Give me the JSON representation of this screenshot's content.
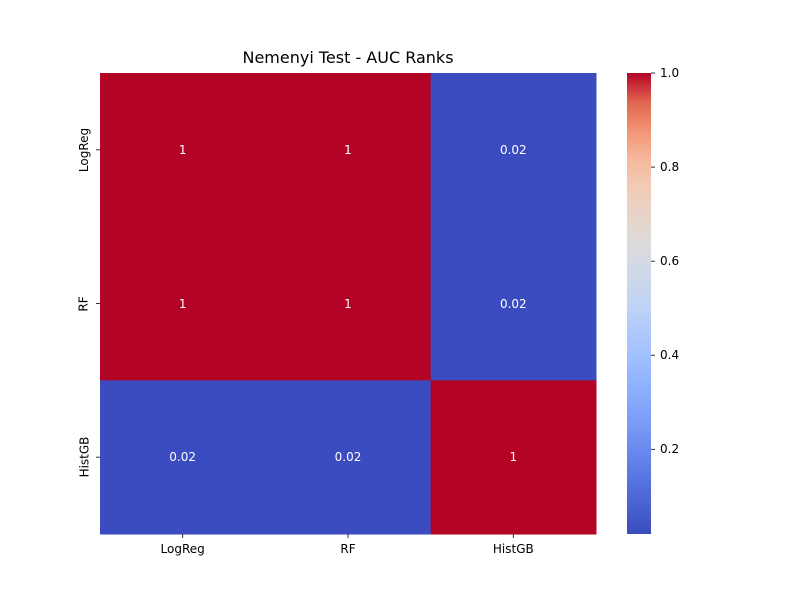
{
  "chart_data": {
    "type": "heatmap",
    "title": "Nemenyi Test - AUC Ranks",
    "xlabel": "",
    "ylabel": "",
    "x_categories": [
      "LogReg",
      "RF",
      "HistGB"
    ],
    "y_categories": [
      "LogReg",
      "RF",
      "HistGB"
    ],
    "values": [
      [
        1,
        1,
        0.02
      ],
      [
        1,
        1,
        0.02
      ],
      [
        0.02,
        0.02,
        1
      ]
    ],
    "cell_labels": [
      [
        "1",
        "1",
        "0.02"
      ],
      [
        "1",
        "1",
        "0.02"
      ],
      [
        "0.02",
        "0.02",
        "1"
      ]
    ],
    "colormap": "coolwarm",
    "colorbar": {
      "range": [
        0.02,
        1.0
      ],
      "ticks": [
        0.2,
        0.4,
        0.6,
        0.8,
        1.0
      ],
      "tick_labels": [
        "0.2",
        "0.4",
        "0.6",
        "0.8",
        "1.0"
      ]
    },
    "colors": {
      "high": "#b40426",
      "low": "#3b4cc0",
      "cell_text_on_dark": "#ffffff"
    },
    "grid": false
  }
}
